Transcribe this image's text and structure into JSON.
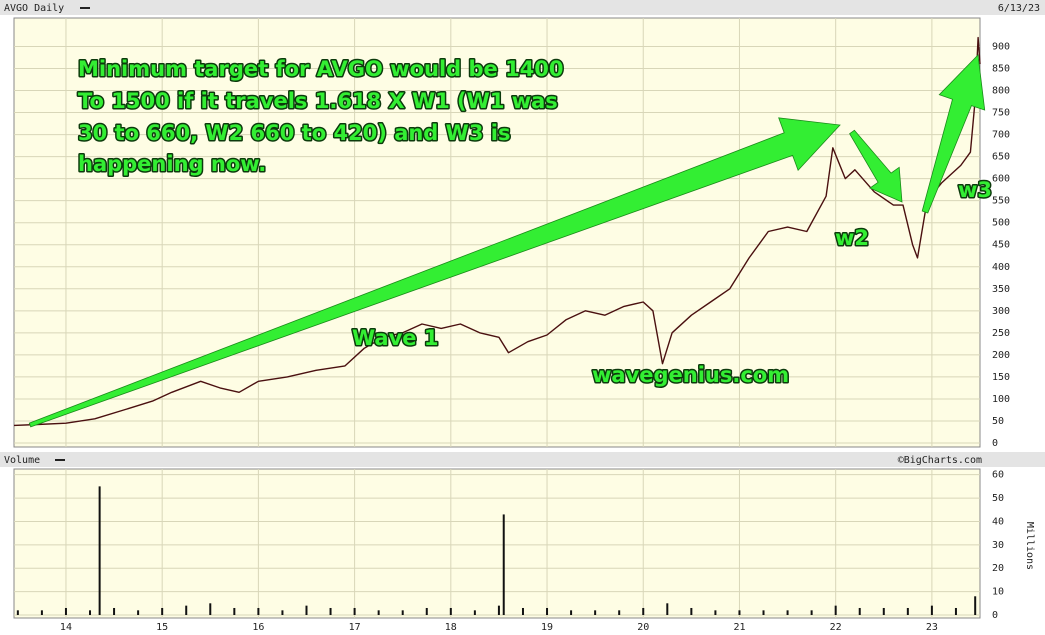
{
  "chart_data": [
    {
      "type": "line",
      "title": "AVGO Daily",
      "date": "6/13/23",
      "color": "#4a1010",
      "x": [
        13.46,
        13.7,
        14.0,
        14.3,
        14.6,
        14.9,
        15.1,
        15.4,
        15.6,
        15.8,
        16.0,
        16.3,
        16.6,
        16.9,
        17.1,
        17.3,
        17.5,
        17.7,
        17.9,
        18.1,
        18.3,
        18.5,
        18.6,
        18.8,
        19.0,
        19.2,
        19.4,
        19.6,
        19.8,
        20.0,
        20.1,
        20.2,
        20.3,
        20.5,
        20.7,
        20.9,
        21.1,
        21.3,
        21.5,
        21.7,
        21.9,
        21.97,
        22.1,
        22.2,
        22.4,
        22.6,
        22.7,
        22.8,
        22.85,
        22.95,
        23.1,
        23.3,
        23.4,
        23.45,
        23.48,
        23.5
      ],
      "values": [
        40,
        42,
        45,
        55,
        75,
        95,
        115,
        140,
        125,
        115,
        140,
        150,
        165,
        175,
        215,
        240,
        250,
        270,
        260,
        270,
        250,
        240,
        205,
        230,
        245,
        280,
        300,
        290,
        310,
        320,
        300,
        180,
        250,
        290,
        320,
        350,
        420,
        480,
        490,
        480,
        560,
        670,
        600,
        620,
        570,
        540,
        540,
        450,
        420,
        550,
        590,
        630,
        660,
        780,
        920,
        860
      ],
      "xlim": [
        13.46,
        23.5
      ],
      "xticks": [
        14,
        15,
        16,
        17,
        18,
        19,
        20,
        21,
        22,
        23
      ],
      "ylim": [
        0,
        960
      ],
      "yticks": [
        0,
        50,
        100,
        150,
        200,
        250,
        300,
        350,
        400,
        450,
        500,
        550,
        600,
        650,
        700,
        750,
        800,
        850,
        900
      ],
      "grid": true,
      "annotations": [
        "Minimum target for AVGO would be 1400",
        "To 1500 if it travels 1.618 X W1 (W1 was",
        "30 to 660, W2 660 to 420) and W3 is",
        "happening now.",
        "Wave 1",
        "wavegenius.com",
        "w2",
        "w3"
      ]
    },
    {
      "type": "bar",
      "title": "Volume",
      "source": "©BigCharts.com",
      "y_label": "Millions",
      "color": "#111",
      "x": [
        13.5,
        13.75,
        14,
        14.25,
        14.35,
        14.5,
        14.75,
        15,
        15.25,
        15.5,
        15.75,
        16,
        16.25,
        16.5,
        16.75,
        17,
        17.25,
        17.5,
        17.75,
        18,
        18.25,
        18.5,
        18.55,
        18.75,
        19,
        19.25,
        19.5,
        19.75,
        20,
        20.25,
        20.5,
        20.75,
        21,
        21.25,
        21.5,
        21.75,
        22,
        22.25,
        22.5,
        22.75,
        23,
        23.25,
        23.45
      ],
      "values": [
        2,
        2,
        3,
        2,
        55,
        3,
        2,
        3,
        4,
        5,
        3,
        3,
        2,
        4,
        3,
        3,
        2,
        2,
        3,
        3,
        2,
        4,
        43,
        3,
        3,
        2,
        2,
        2,
        3,
        5,
        3,
        2,
        2,
        2,
        2,
        2,
        4,
        3,
        3,
        3,
        4,
        3,
        8
      ],
      "xlim": [
        13.46,
        23.5
      ],
      "xticks": [
        14,
        15,
        16,
        17,
        18,
        19,
        20,
        21,
        22,
        23
      ],
      "ylim": [
        0,
        62
      ],
      "yticks": [
        0,
        10,
        20,
        30,
        40,
        50,
        60
      ],
      "grid": true
    }
  ]
}
